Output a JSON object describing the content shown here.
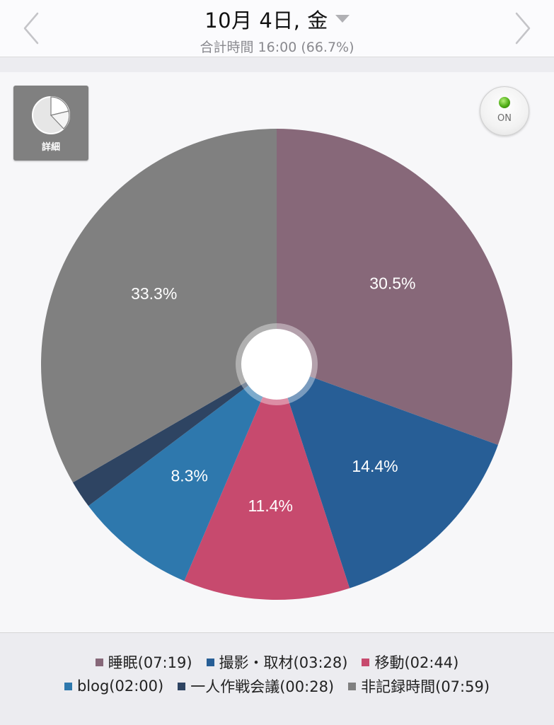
{
  "header": {
    "date_title": "10月 4日, 金",
    "subtitle": "合計時間 16:00 (66.7%)"
  },
  "controls": {
    "detail_label": "詳細",
    "on_label": "ON"
  },
  "icons": {
    "prev": "chevron-left-icon",
    "next": "chevron-right-icon",
    "dropdown": "triangle-down-icon",
    "detail": "pie-chart-icon",
    "status_led": "green-led-icon"
  },
  "chart_data": {
    "type": "pie",
    "title": "",
    "start_angle_deg": 0,
    "direction": "clockwise",
    "donut_hole": true,
    "slices": [
      {
        "label": "睡眠",
        "time": "07:19",
        "percent": 30.5,
        "color": "#876879",
        "show_label": true
      },
      {
        "label": "撮影・取材",
        "time": "03:28",
        "percent": 14.4,
        "color": "#275e96",
        "show_label": true
      },
      {
        "label": "移動",
        "time": "02:44",
        "percent": 11.4,
        "color": "#c74a6e",
        "show_label": true
      },
      {
        "label": "blog",
        "time": "02:00",
        "percent": 8.3,
        "color": "#2e78ad",
        "show_label": true
      },
      {
        "label": "一人作戦会議",
        "time": "00:28",
        "percent": 1.9,
        "color": "#2e4462",
        "show_label": false
      },
      {
        "label": "非記録時間",
        "time": "07:59",
        "percent": 33.3,
        "color": "#808080",
        "show_label": true
      }
    ]
  },
  "legend": {
    "row1": [
      {
        "text": "睡眠(07:19)",
        "color": "#876879"
      },
      {
        "text": "撮影・取材(03:28)",
        "color": "#275e96"
      },
      {
        "text": "移動(02:44)",
        "color": "#c74a6e"
      }
    ],
    "row2": [
      {
        "text": "blog(02:00)",
        "color": "#2e78ad"
      },
      {
        "text": "一人作戦会議(00:28)",
        "color": "#2e4462"
      },
      {
        "text": "非記録時間(07:59)",
        "color": "#808080"
      }
    ]
  }
}
